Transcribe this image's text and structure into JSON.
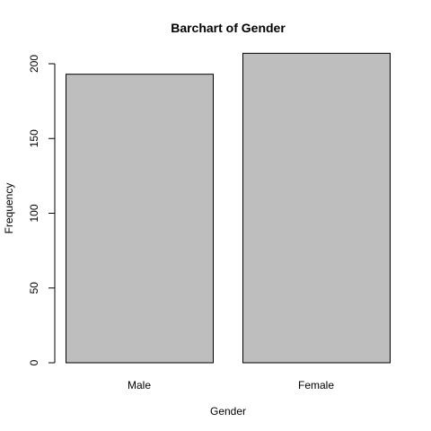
{
  "chart_data": {
    "type": "bar",
    "title": "Barchart of Gender",
    "xlabel": "Gender",
    "ylabel": "Frequency",
    "categories": [
      "Male",
      "Female"
    ],
    "values": [
      193,
      207
    ],
    "ylim": [
      0,
      200
    ],
    "yticks": [
      0,
      50,
      100,
      150,
      200
    ],
    "bar_color": "#bebebe",
    "grid": false,
    "legend": "none"
  }
}
